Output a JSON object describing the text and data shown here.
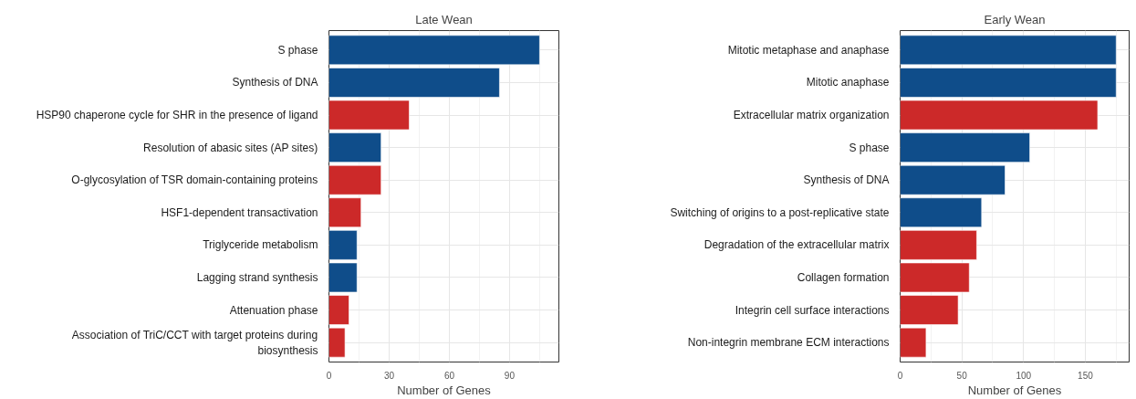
{
  "chart_data": [
    {
      "type": "bar",
      "orientation": "horizontal",
      "title": "Late Wean",
      "xlabel": "Number of Genes",
      "categories": [
        "S phase",
        "Synthesis of DNA",
        "HSP90 chaperone cycle for SHR in the presence of ligand",
        "Resolution of abasic sites (AP sites)",
        "O-glycosylation of TSR domain-containing proteins",
        "HSF1-dependent transactivation",
        "Triglyceride metabolism",
        "Lagging strand synthesis",
        "Attenuation phase",
        "Association of TriC/CCT with target proteins during\nbiosynthesis"
      ],
      "values": [
        105,
        85,
        40,
        26,
        26,
        16,
        14,
        14,
        10,
        8
      ],
      "colors": [
        "#0f4d8a",
        "#0f4d8a",
        "#cc2929",
        "#0f4d8a",
        "#cc2929",
        "#cc2929",
        "#0f4d8a",
        "#0f4d8a",
        "#cc2929",
        "#cc2929"
      ],
      "xlim": [
        0,
        114.6
      ],
      "xticks": [
        0,
        30,
        60,
        90
      ],
      "grid": true
    },
    {
      "type": "bar",
      "orientation": "horizontal",
      "title": "Early Wean",
      "xlabel": "Number of Genes",
      "categories": [
        "Mitotic metaphase and anaphase",
        "Mitotic anaphase",
        "Extracellular matrix organization",
        "S phase",
        "Synthesis of DNA",
        "Switching of origins to a post-replicative state",
        "Degradation of the extracellular matrix",
        "Collagen formation",
        "Integrin cell surface interactions",
        "Non-integrin membrane ECM interactions"
      ],
      "values": [
        175,
        175,
        160,
        105,
        85,
        66,
        62,
        56,
        47,
        21
      ],
      "colors": [
        "#0f4d8a",
        "#0f4d8a",
        "#cc2929",
        "#0f4d8a",
        "#0f4d8a",
        "#0f4d8a",
        "#cc2929",
        "#cc2929",
        "#cc2929",
        "#cc2929"
      ],
      "xlim": [
        0,
        185.5
      ],
      "xticks": [
        0,
        50,
        100,
        150
      ],
      "grid": true
    }
  ]
}
